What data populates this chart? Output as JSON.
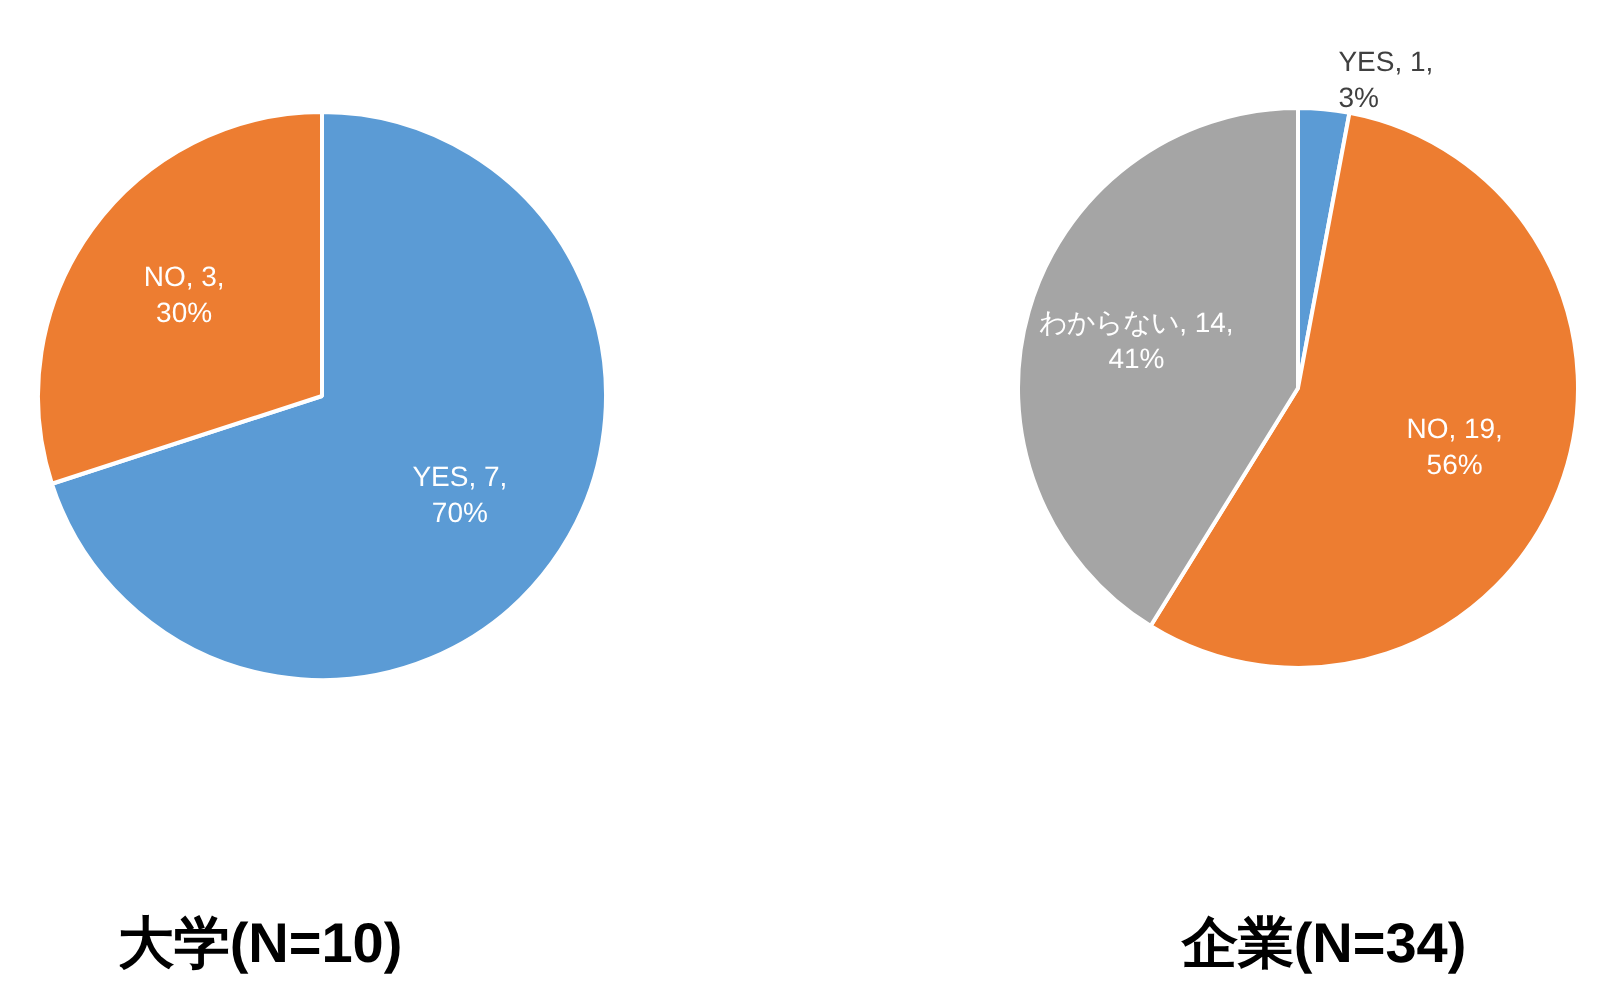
{
  "chart_data": [
    {
      "type": "pie",
      "title": "大学(N=10)",
      "categories": [
        "YES",
        "NO"
      ],
      "values": [
        7,
        3
      ],
      "colors": [
        "#5b9bd5",
        "#ed7d31"
      ],
      "value_labels": [
        "7, 70%",
        "3, 30%"
      ]
    },
    {
      "type": "pie",
      "title": "企業(N=34)",
      "categories": [
        "YES",
        "NO",
        "わからない"
      ],
      "values": [
        1,
        19,
        14
      ],
      "colors": [
        "#5b9bd5",
        "#ed7d31",
        "#a5a5a5"
      ],
      "value_labels": [
        "1, 3%",
        "19, 56%",
        "14, 41%"
      ]
    }
  ]
}
